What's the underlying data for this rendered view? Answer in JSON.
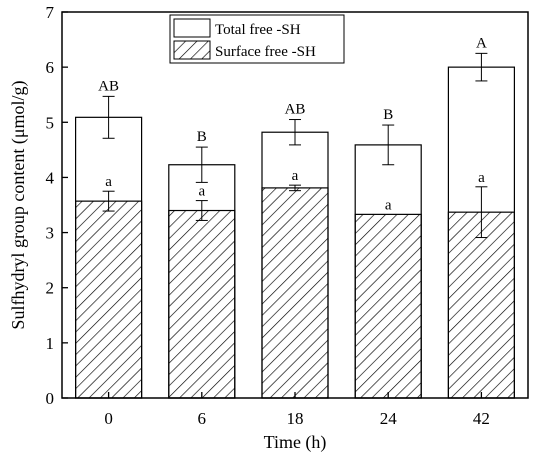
{
  "chart_data": {
    "type": "bar",
    "title": "",
    "xlabel": "Time (h)",
    "ylabel": "Sulfhydryl group content (μmol/g)",
    "ylim": [
      0,
      7
    ],
    "yticks": [
      0,
      1,
      2,
      3,
      4,
      5,
      6,
      7
    ],
    "categories": [
      "0",
      "6",
      "18",
      "24",
      "42"
    ],
    "legend_position": "top-center",
    "series": [
      {
        "name": "Total free -SH",
        "style": "open",
        "values": [
          5.09,
          4.23,
          4.82,
          4.59,
          6.0
        ],
        "errors": [
          0.38,
          0.32,
          0.23,
          0.36,
          0.25
        ],
        "labels": [
          "AB",
          "B",
          "AB",
          "B",
          "A"
        ]
      },
      {
        "name": "Surface free -SH",
        "style": "hatched",
        "values": [
          3.57,
          3.4,
          3.81,
          3.33,
          3.37
        ],
        "errors": [
          0.18,
          0.18,
          0.05,
          0.0,
          0.46
        ],
        "labels": [
          "a",
          "a",
          "a",
          "a",
          "a"
        ]
      }
    ]
  }
}
